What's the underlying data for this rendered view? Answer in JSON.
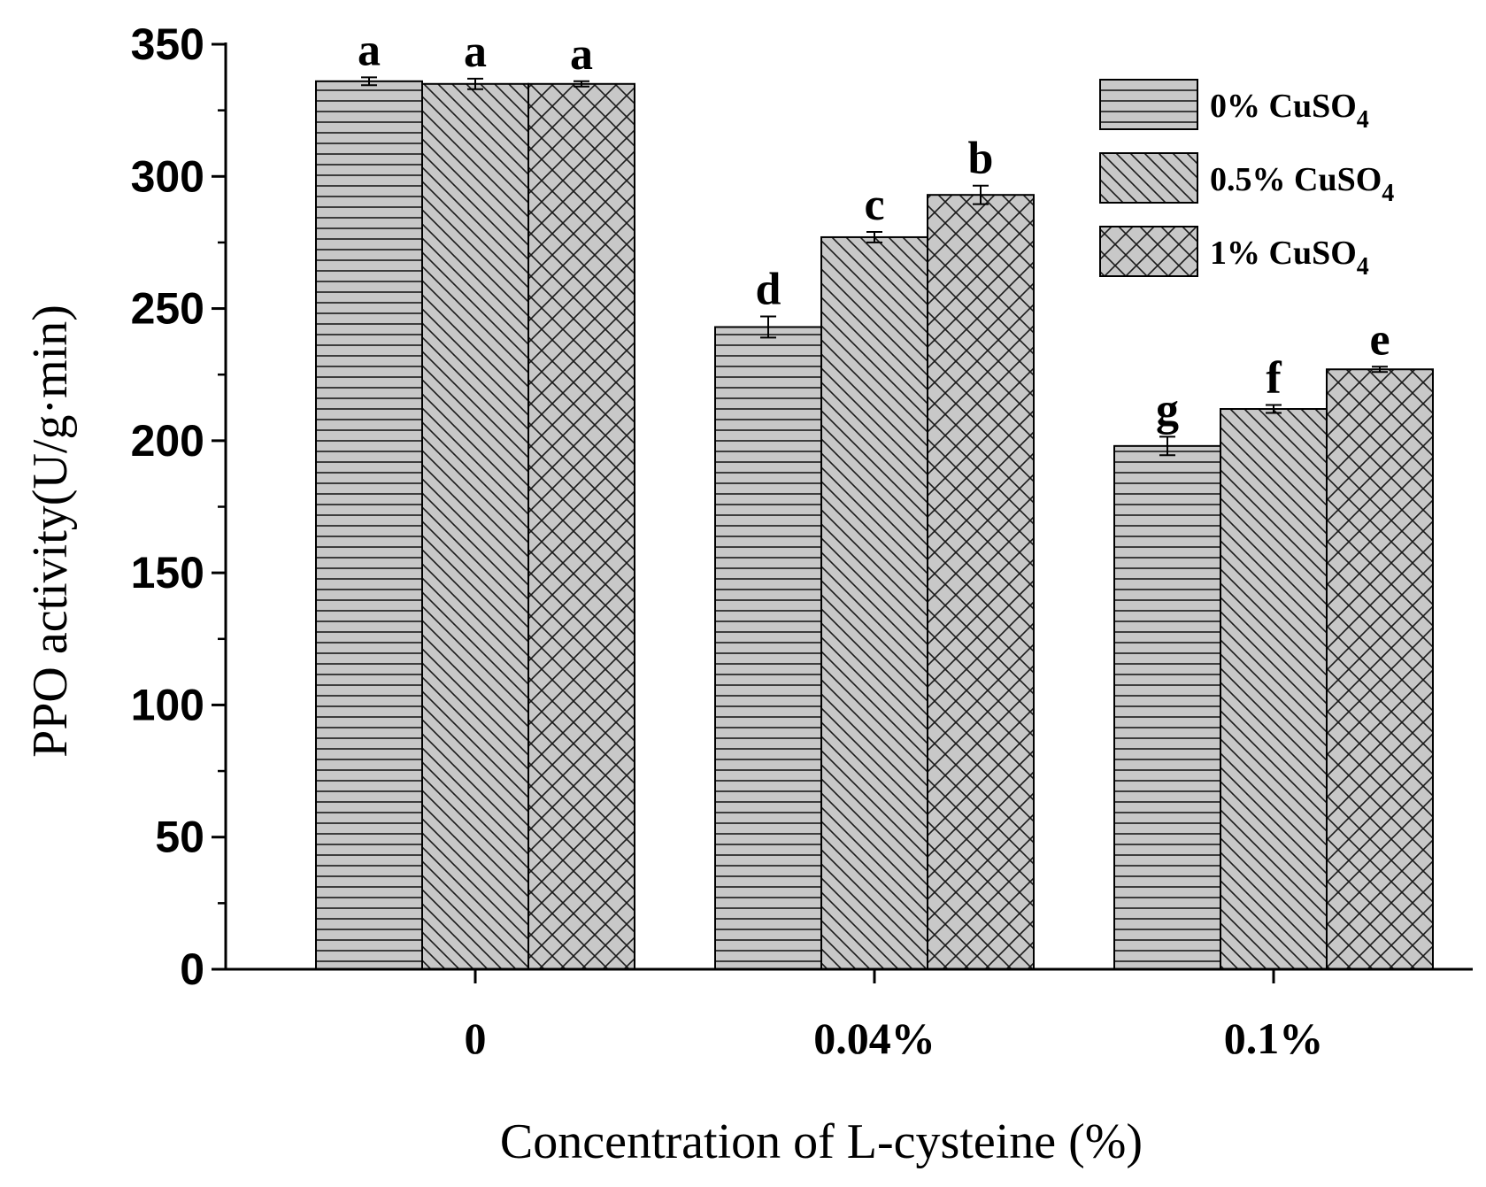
{
  "chart_data": {
    "type": "bar",
    "xlabel": "Concentration of L-cysteine (%)",
    "ylabel": "PPO activity(U/g·min)",
    "ylim": [
      0,
      350
    ],
    "yticks": [
      0,
      50,
      100,
      150,
      200,
      250,
      300,
      350
    ],
    "grid": false,
    "legend_position": "top-right",
    "categories": [
      "0",
      "0.04%",
      "0.1%"
    ],
    "series": [
      {
        "name": "0% CuSO",
        "name_subscript": "4",
        "pattern": "horizontal-lines",
        "values": [
          336,
          243,
          198
        ],
        "errors": [
          1.5,
          4,
          3.5
        ],
        "letters": [
          "a",
          "d",
          "g"
        ]
      },
      {
        "name": "0.5% CuSO",
        "name_subscript": "4",
        "pattern": "diagonal-lines",
        "values": [
          335,
          277,
          212
        ],
        "errors": [
          2,
          2,
          1.5
        ],
        "letters": [
          "a",
          "c",
          "f"
        ]
      },
      {
        "name": "1% CuSO",
        "name_subscript": "4",
        "pattern": "crosshatch",
        "values": [
          335,
          293,
          227
        ],
        "errors": [
          1,
          3.5,
          1
        ],
        "letters": [
          "a",
          "b",
          "e"
        ]
      }
    ],
    "colors": {
      "bar_fill": "#c8c8c8",
      "pattern_stroke": "#1a1a1a",
      "axis": "#000000"
    }
  }
}
